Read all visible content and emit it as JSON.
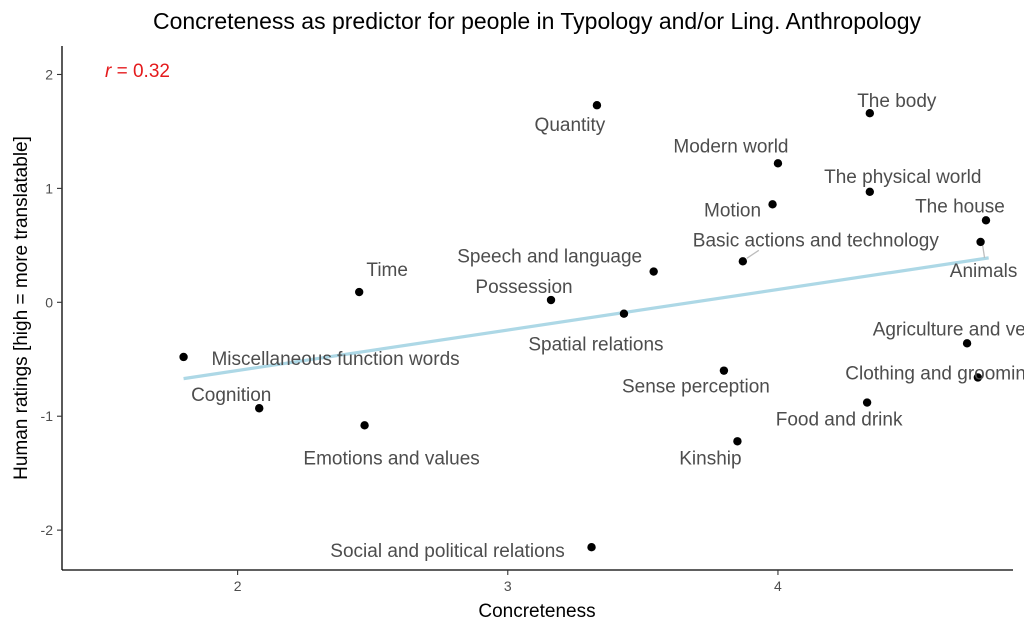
{
  "chart_data": {
    "type": "scatter",
    "title": "Concreteness as predictor for people in Typology and/or Ling. Anthropology",
    "xlabel": "Concreteness",
    "ylabel": "Human ratings [high = more translatable]",
    "xlim": [
      1.35,
      4.87
    ],
    "ylim": [
      -2.35,
      2.25
    ],
    "x_ticks": [
      2,
      3,
      4
    ],
    "x_tick_labels": [
      "2",
      "3",
      "4"
    ],
    "y_ticks": [
      -2,
      -1,
      0,
      1,
      2
    ],
    "y_tick_labels": [
      "-2",
      "-1",
      "0",
      "1",
      "2"
    ],
    "grid": false,
    "annotation": {
      "r_symbol": "r",
      "r_rest": " = 0.32",
      "color": "#e41a1c"
    },
    "regression": {
      "x": [
        1.8,
        4.78
      ],
      "y": [
        -0.67,
        0.39
      ],
      "color": "#add8e6"
    },
    "points": [
      {
        "label": "Quantity",
        "x": 3.33,
        "y": 1.73
      },
      {
        "label": "The body",
        "x": 4.34,
        "y": 1.66
      },
      {
        "label": "Modern world",
        "x": 4.0,
        "y": 1.22
      },
      {
        "label": "The physical world",
        "x": 4.34,
        "y": 0.97
      },
      {
        "label": "Motion",
        "x": 3.98,
        "y": 0.86
      },
      {
        "label": "The house",
        "x": 4.77,
        "y": 0.72
      },
      {
        "label": "Basic actions and technology",
        "x": 3.87,
        "y": 0.36
      },
      {
        "label": "Animals",
        "x": 4.75,
        "y": 0.53
      },
      {
        "label": "Speech and language",
        "x": 3.54,
        "y": 0.27
      },
      {
        "label": "Time",
        "x": 2.45,
        "y": 0.09
      },
      {
        "label": "Possession",
        "x": 3.16,
        "y": 0.02
      },
      {
        "label": "Spatial relations",
        "x": 3.43,
        "y": -0.1
      },
      {
        "label": "Agriculture and vegetation",
        "x": 4.7,
        "y": -0.36
      },
      {
        "label": "Miscellaneous function words",
        "x": 1.8,
        "y": -0.48
      },
      {
        "label": "Sense perception",
        "x": 3.8,
        "y": -0.6
      },
      {
        "label": "Clothing and grooming",
        "x": 4.74,
        "y": -0.66
      },
      {
        "label": "Food and drink",
        "x": 4.33,
        "y": -0.88
      },
      {
        "label": "Cognition",
        "x": 2.08,
        "y": -0.93
      },
      {
        "label": "Emotions and values",
        "x": 2.47,
        "y": -1.08
      },
      {
        "label": "Kinship",
        "x": 3.85,
        "y": -1.22
      },
      {
        "label": "Social and political relations",
        "x": 3.31,
        "y": -2.15
      }
    ]
  }
}
